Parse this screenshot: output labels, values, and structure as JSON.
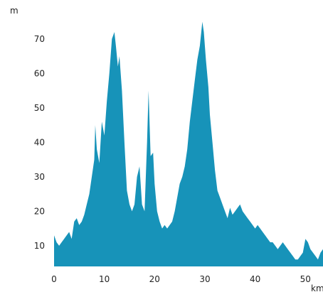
{
  "chart_data": {
    "type": "area",
    "title": "",
    "xlabel": "",
    "ylabel": "",
    "x_unit": "km",
    "y_unit": "m",
    "xlim": [
      0,
      53.5
    ],
    "ylim": [
      4,
      78
    ],
    "x_ticks": [
      0,
      10,
      20,
      30,
      40,
      50
    ],
    "y_ticks": [
      10,
      20,
      30,
      40,
      50,
      60,
      70
    ],
    "grid": false,
    "legend": "none",
    "fill_color": "#1793b9",
    "series": [
      {
        "x": [
          0,
          0.5,
          1,
          1.5,
          2,
          2.5,
          3,
          3.5,
          4,
          4.5,
          5,
          5.5,
          6,
          6.5,
          7,
          7.5,
          8,
          8.2,
          8.5,
          9,
          9.5,
          10,
          10.5,
          11,
          11.5,
          12,
          12.3,
          12.7,
          13,
          13.5,
          14,
          14.5,
          15,
          15.5,
          16,
          16.5,
          17,
          17.5,
          18,
          18.5,
          18.8,
          19.2,
          19.7,
          20,
          20.5,
          21,
          21.5,
          22,
          22.5,
          23,
          23.5,
          24,
          24.5,
          25,
          25.5,
          26,
          26.5,
          27,
          27.5,
          28,
          28.5,
          29,
          29.5,
          29.8,
          30.2,
          30.7,
          31,
          31.5,
          32,
          32.5,
          33,
          33.5,
          34,
          34.5,
          35,
          35.5,
          36,
          36.5,
          37,
          37.5,
          38,
          38.5,
          39,
          39.5,
          40,
          40.5,
          41,
          41.5,
          42,
          42.5,
          43,
          43.5,
          44,
          44.5,
          45,
          45.5,
          46,
          46.5,
          47,
          47.5,
          48,
          48.5,
          49,
          49.5,
          50,
          50.5,
          51,
          51.5,
          52,
          52.5,
          53,
          53.5
        ],
        "y": [
          13,
          11,
          10,
          11,
          12,
          13,
          14,
          12,
          17,
          18,
          16,
          17,
          19,
          22,
          25,
          30,
          35,
          45,
          38,
          34,
          46,
          42,
          52,
          60,
          70,
          72,
          68,
          62,
          65,
          55,
          40,
          26,
          22,
          20,
          22,
          30,
          33,
          22,
          20,
          40,
          55,
          36,
          37,
          28,
          20,
          17,
          15,
          16,
          15,
          16,
          17,
          20,
          24,
          28,
          30,
          33,
          38,
          46,
          52,
          58,
          64,
          68,
          75,
          72,
          64,
          56,
          48,
          40,
          32,
          26,
          24,
          22,
          20,
          18,
          21,
          19,
          20,
          21,
          22,
          20,
          19,
          18,
          17,
          16,
          15,
          16,
          15,
          14,
          13,
          12,
          11,
          11,
          10,
          9,
          10,
          11,
          10,
          9,
          8,
          7,
          6,
          6,
          7,
          8,
          12,
          11,
          9,
          8,
          7,
          6,
          8,
          9
        ]
      }
    ]
  }
}
